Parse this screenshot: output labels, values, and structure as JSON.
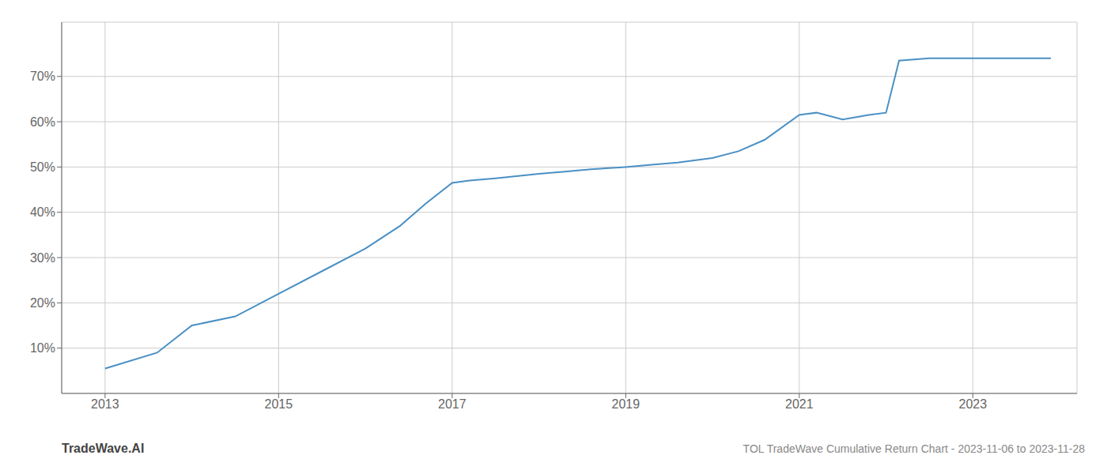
{
  "chart_data": {
    "type": "line",
    "title": "TOL TradeWave Cumulative Return Chart - 2023-11-06 to 2023-11-28",
    "annotations": [
      "TradeWave.AI"
    ],
    "x": [
      2013.0,
      2013.6,
      2014.0,
      2014.5,
      2015.0,
      2015.5,
      2016.0,
      2016.4,
      2016.7,
      2017.0,
      2017.2,
      2017.5,
      2018.0,
      2018.3,
      2018.6,
      2019.0,
      2019.3,
      2019.6,
      2020.0,
      2020.3,
      2020.6,
      2021.0,
      2021.2,
      2021.5,
      2021.8,
      2022.0,
      2022.15,
      2022.5,
      2022.8,
      2023.0,
      2023.9
    ],
    "values": [
      5.5,
      9.0,
      15.0,
      17.0,
      22.0,
      27.0,
      32.0,
      37.0,
      42.0,
      46.5,
      47.0,
      47.5,
      48.5,
      49.0,
      49.5,
      50.0,
      50.5,
      51.0,
      52.0,
      53.5,
      56.0,
      61.5,
      62.0,
      60.5,
      61.5,
      62.0,
      73.5,
      74.0,
      74.0,
      74.0,
      74.0
    ],
    "color": "#4a90c4",
    "xlim": [
      2012.5,
      2024.2
    ],
    "xticks": [
      2013,
      2015,
      2017,
      2019,
      2021,
      2023
    ],
    "ylim": [
      0,
      82
    ],
    "yticks": [
      {
        "value": 10,
        "label": "10%"
      },
      {
        "value": 20,
        "label": "20%"
      },
      {
        "value": 30,
        "label": "30%"
      },
      {
        "value": 40,
        "label": "40%"
      },
      {
        "value": 50,
        "label": "50%"
      },
      {
        "value": 60,
        "label": "60%"
      },
      {
        "value": 70,
        "label": "70%"
      }
    ],
    "grid": true
  }
}
